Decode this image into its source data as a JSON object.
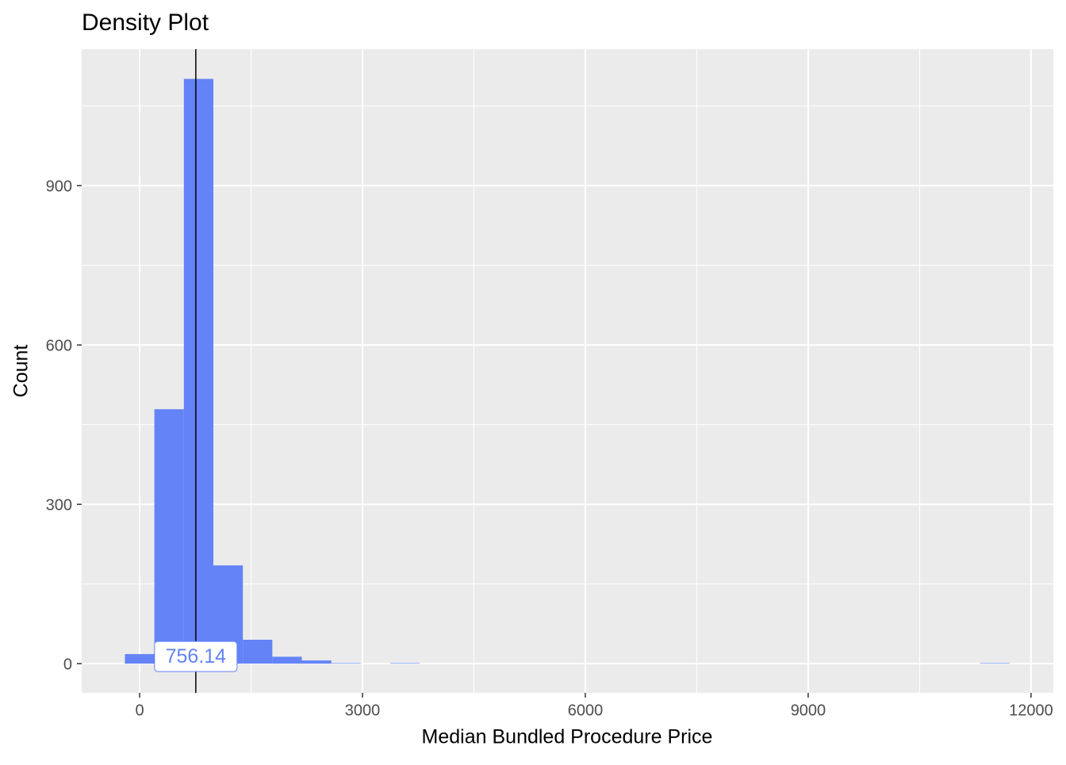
{
  "chart_data": {
    "type": "histogram",
    "title": "Density Plot",
    "x_label": "Median Bundled Procedure Price",
    "y_label": "Count",
    "bins": [
      -198.5,
      198.5,
      595.5,
      992.5,
      1389.5,
      1786.5,
      2183.5,
      2580.5,
      2977.5,
      3374.5,
      3771.5,
      4168.5,
      4565.5,
      4962.5,
      5359.5,
      5756.5,
      6153.5,
      6550.5,
      6947.5,
      7344.5,
      7741.5,
      8138.5,
      8535.5,
      8932.5,
      9329.5,
      9726.5,
      10123.5,
      10520.5,
      10917.5,
      11314.5,
      11711.5
    ],
    "counts": [
      18,
      479,
      1101,
      185,
      45,
      13,
      6,
      1,
      0,
      1,
      0,
      0,
      0,
      0,
      0,
      0,
      0,
      0,
      0,
      0,
      0,
      0,
      0,
      0,
      0,
      0,
      0,
      0,
      0,
      1
    ],
    "color": "#6383f6",
    "vline": {
      "value": 756.14,
      "label": "756.14"
    },
    "xlim": [
      -780,
      12300
    ],
    "xticks": [
      0,
      3000,
      6000,
      9000,
      12000
    ],
    "ylim": [
      -55,
      1157
    ],
    "yticks": [
      0,
      300,
      600,
      900
    ],
    "grid": true
  }
}
